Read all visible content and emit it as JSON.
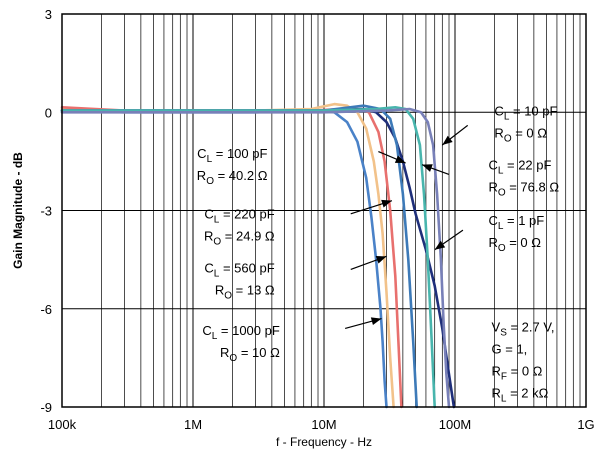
{
  "chart_data": {
    "type": "line",
    "title": "",
    "xlabel": "f - Frequency - Hz",
    "ylabel": "Gain Magnitude - dB",
    "x_scale": "log",
    "xlim": [
      100000,
      1000000000
    ],
    "ylim": [
      -9,
      3
    ],
    "grid": true,
    "x_ticks": [
      {
        "value": 100000,
        "label": "100k"
      },
      {
        "value": 1000000,
        "label": "1M"
      },
      {
        "value": 10000000,
        "label": "10M"
      },
      {
        "value": 100000000,
        "label": "100M"
      },
      {
        "value": 1000000000,
        "label": "1G"
      }
    ],
    "y_ticks": [
      {
        "value": 3,
        "label": "3"
      },
      {
        "value": 0,
        "label": "0"
      },
      {
        "value": -3,
        "label": "-3"
      },
      {
        "value": -6,
        "label": "-6"
      },
      {
        "value": -9,
        "label": "-9"
      }
    ],
    "series": [
      {
        "color": "#4a82c8",
        "x": [
          100000,
          300000,
          1000000,
          3000000,
          8000000,
          12000000,
          15000000,
          18000000,
          21000000,
          23000000,
          25000000,
          27000000,
          28000000,
          29000000,
          30000000
        ],
        "y": [
          0.05,
          0.0,
          0.0,
          0.0,
          0.05,
          0.0,
          -0.3,
          -0.9,
          -2.0,
          -3.2,
          -4.5,
          -6.0,
          -7.0,
          -8.2,
          -9.0
        ]
      },
      {
        "color": "#f2c28a",
        "x": [
          100000,
          300000,
          1000000,
          3000000,
          8000000,
          12000000,
          15000000,
          18000000,
          21000000,
          24000000,
          26000000,
          28000000,
          30000000,
          32000000,
          34000000
        ],
        "y": [
          0.1,
          0.0,
          0.05,
          0.05,
          0.1,
          0.25,
          0.2,
          0.0,
          -0.5,
          -1.5,
          -2.5,
          -3.7,
          -5.5,
          -7.5,
          -9.0
        ]
      },
      {
        "color": "#e8706e",
        "x": [
          100000,
          300000,
          1000000,
          3000000,
          8000000,
          14000000,
          18000000,
          22000000,
          26000000,
          29000000,
          32000000,
          35000000,
          37000000,
          39000000
        ],
        "y": [
          0.15,
          0.05,
          0.05,
          0.05,
          0.05,
          0.1,
          0.1,
          0.0,
          -0.6,
          -1.5,
          -3.0,
          -5.0,
          -7.0,
          -9.0
        ]
      },
      {
        "color": "#1f2f7a",
        "x": [
          100000,
          300000,
          1000000,
          3000000,
          10000000,
          20000000,
          25000000,
          30000000,
          35000000,
          40000000,
          45000000,
          50000000,
          60000000,
          70000000,
          80000000,
          90000000,
          98000000
        ],
        "y": [
          0.05,
          0.05,
          0.05,
          0.05,
          0.05,
          0.1,
          0.0,
          -0.3,
          -0.8,
          -1.5,
          -2.3,
          -3.1,
          -4.2,
          -5.3,
          -6.6,
          -8.0,
          -9.0
        ]
      },
      {
        "color": "#3d7ab8",
        "x": [
          100000,
          300000,
          1000000,
          3000000,
          10000000,
          20000000,
          27000000,
          32000000,
          36000000,
          40000000,
          44000000,
          48000000,
          51000000
        ],
        "y": [
          0.05,
          0.05,
          0.05,
          0.05,
          0.05,
          0.2,
          0.1,
          -0.2,
          -1.0,
          -2.5,
          -4.5,
          -7.0,
          -9.0
        ]
      },
      {
        "color": "#48b5ad",
        "x": [
          100000,
          300000,
          1000000,
          3000000,
          10000000,
          25000000,
          35000000,
          42000000,
          48000000,
          54000000,
          58000000,
          62000000,
          66000000,
          70000000
        ],
        "y": [
          0.05,
          0.05,
          0.05,
          0.05,
          0.05,
          0.1,
          0.15,
          0.1,
          -0.2,
          -1.0,
          -2.5,
          -4.5,
          -6.8,
          -9.0
        ]
      },
      {
        "color": "#7880b8",
        "x": [
          100000,
          300000,
          1000000,
          3000000,
          10000000,
          30000000,
          45000000,
          55000000,
          62000000,
          68000000,
          73000000,
          78000000,
          82000000,
          86000000,
          90000000
        ],
        "y": [
          0.0,
          0.0,
          0.0,
          0.0,
          0.0,
          0.05,
          0.1,
          0.0,
          -0.3,
          -1.0,
          -2.5,
          -4.5,
          -6.5,
          -8.0,
          -9.0
        ]
      }
    ],
    "annotations": [
      {
        "lines": [
          [
            "C",
            "L",
            " = 10 pF"
          ],
          [
            "R",
            "O",
            " = 0 Ω"
          ]
        ],
        "anchor": "start",
        "tx": 200000000,
        "ty": -0.1,
        "ax": 125000000,
        "ay": -0.4,
        "px": 80000000,
        "py": -1.0
      },
      {
        "lines": [
          [
            "C",
            "L",
            " = 100 pF"
          ],
          [
            "R",
            "O",
            " = 40.2 Ω"
          ]
        ],
        "anchor": "end",
        "tx": 3700000,
        "ty": -1.4,
        "ax": 26000000,
        "ay": -1.2,
        "px": 42000000,
        "py": -1.55
      },
      {
        "lines": [
          [
            "C",
            "L",
            " = 22 pF"
          ],
          [
            "R",
            "O",
            " = 76.8 Ω"
          ]
        ],
        "anchor": "start",
        "tx": 180000000,
        "ty": -1.75,
        "ax": 90000000,
        "ay": -1.9,
        "px": 56000000,
        "py": -1.6
      },
      {
        "lines": [
          [
            "C",
            "L",
            " = 220 pF"
          ],
          [
            "R",
            "O",
            " = 24.9 Ω"
          ]
        ],
        "anchor": "end",
        "tx": 4200000,
        "ty": -3.25,
        "ax": 16000000,
        "ay": -3.1,
        "px": 33000000,
        "py": -2.7
      },
      {
        "lines": [
          [
            "C",
            "L",
            " = 1 pF"
          ],
          [
            "R",
            "O",
            " = 0 Ω"
          ]
        ],
        "anchor": "start",
        "tx": 180000000,
        "ty": -3.45,
        "ax": 115000000,
        "ay": -3.6,
        "px": 70000000,
        "py": -4.2
      },
      {
        "lines": [
          [
            "C",
            "L",
            " = 560 pF"
          ],
          [
            "R",
            "O",
            " = 13 Ω"
          ]
        ],
        "anchor": "end",
        "tx": 4200000,
        "ty": -4.9,
        "ax": 16000000,
        "ay": -4.8,
        "px": 30000000,
        "py": -4.4
      },
      {
        "lines": [
          [
            "C",
            "L",
            " = 1000 pF"
          ],
          [
            "R",
            "O",
            " = 10 Ω"
          ]
        ],
        "anchor": "end",
        "tx": 4600000,
        "ty": -6.8,
        "ax": 14500000,
        "ay": -6.6,
        "px": 27500000,
        "py": -6.3
      }
    ],
    "conditions": [
      [
        "V",
        "S",
        " = 2.7 V,"
      ],
      [
        "G = 1,",
        "",
        ""
      ],
      [
        "R",
        "F",
        " = 0 Ω"
      ],
      [
        "R",
        "L",
        " = 2 kΩ"
      ]
    ]
  }
}
